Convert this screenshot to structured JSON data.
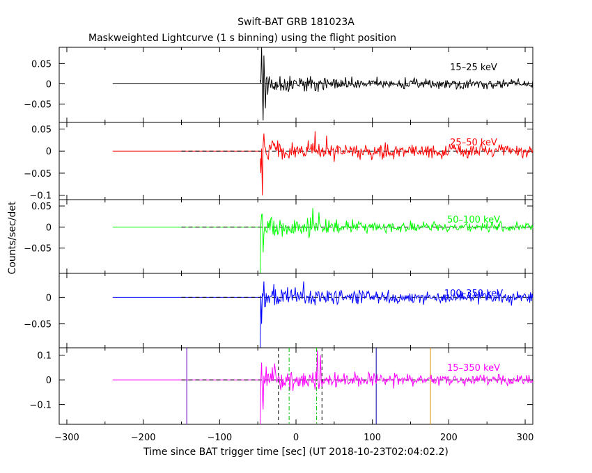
{
  "chart_data": {
    "type": "line",
    "title": "Swift-BAT GRB 181023A",
    "subtitle": "Maskweighted Lightcurve (1 s binning) using the flight position",
    "xlabel": "Time since BAT trigger time [sec] (UT 2018-10-23T02:04:02.2)",
    "ylabel": "Counts/sec/det",
    "xlim": [
      -310,
      310
    ],
    "x_ticks": [
      -300,
      -200,
      -100,
      0,
      100,
      200,
      300
    ],
    "x_tick_labels": [
      "−300",
      "−200",
      "−100",
      "0",
      "100",
      "200",
      "300"
    ],
    "data_start": -240,
    "burst_start": -47,
    "data_end": 310,
    "panels": [
      {
        "name": "15–25 keV",
        "color": "#000000",
        "ylim": [
          -0.095,
          0.09
        ],
        "y_ticks": [
          0.05,
          0,
          -0.05
        ],
        "y_tick_labels": [
          "0.05",
          "0",
          "−0.05"
        ],
        "noise_early": 0.02,
        "noise_late": 0.008,
        "spikes": [
          [
            -45,
            0.09
          ],
          [
            -43,
            -0.09
          ],
          [
            -42,
            0.07
          ],
          [
            -40,
            -0.06
          ]
        ]
      },
      {
        "name": "25–50 keV",
        "color": "#ff0000",
        "ylim": [
          -0.11,
          0.065
        ],
        "y_ticks": [
          0.05,
          0,
          -0.05,
          -0.1
        ],
        "y_tick_labels": [
          "0.05",
          "0",
          "−0.05",
          "−0.1"
        ],
        "noise_early": 0.02,
        "noise_late": 0.01,
        "spikes": [
          [
            -46,
            -0.05
          ],
          [
            -44,
            -0.1
          ],
          [
            -42,
            0.04
          ],
          [
            25,
            0.045
          ],
          [
            40,
            0.035
          ]
        ]
      },
      {
        "name": "50–100 keV",
        "color": "#00ff00",
        "ylim": [
          -0.11,
          0.065
        ],
        "y_ticks": [
          0.05,
          0,
          -0.05
        ],
        "y_tick_labels": [
          "0.05",
          "0",
          "−0.05"
        ],
        "noise_early": 0.02,
        "noise_late": 0.008,
        "spikes": [
          [
            -47,
            -0.11
          ],
          [
            -45,
            0.03
          ],
          [
            -43,
            -0.06
          ],
          [
            22,
            0.045
          ],
          [
            30,
            0.035
          ]
        ]
      },
      {
        "name": "100–350 keV",
        "color": "#0000ff",
        "ylim": [
          -0.095,
          0.045
        ],
        "y_ticks": [
          0,
          -0.05
        ],
        "y_tick_labels": [
          "0",
          "−0.05"
        ],
        "noise_early": 0.018,
        "noise_late": 0.008,
        "spikes": [
          [
            -47,
            -0.095
          ],
          [
            -45,
            -0.05
          ],
          [
            -42,
            0.03
          ],
          [
            10,
            0.03
          ]
        ]
      },
      {
        "name": "15–350 keV",
        "color": "#ff00ff",
        "ylim": [
          -0.18,
          0.13
        ],
        "y_ticks": [
          0.1,
          0,
          -0.1
        ],
        "y_tick_labels": [
          "0.1",
          "0",
          "−0.1"
        ],
        "noise_early": 0.045,
        "noise_late": 0.015,
        "spikes": [
          [
            -47,
            -0.18
          ],
          [
            -45,
            0.07
          ],
          [
            -43,
            -0.12
          ],
          [
            28,
            0.12
          ],
          [
            32,
            0.1
          ]
        ]
      }
    ],
    "markers": [
      {
        "x": -143,
        "color": "#6000c0",
        "style": "solid"
      },
      {
        "x": -23,
        "color": "#000000",
        "style": "dashed"
      },
      {
        "x": -9,
        "color": "#00c000",
        "style": "dashdot"
      },
      {
        "x": 27,
        "color": "#00c000",
        "style": "dashdot"
      },
      {
        "x": 34,
        "color": "#000000",
        "style": "dashed"
      },
      {
        "x": 105,
        "color": "#0000a0",
        "style": "solid"
      },
      {
        "x": 176,
        "color": "#e09000",
        "style": "solid"
      }
    ]
  }
}
